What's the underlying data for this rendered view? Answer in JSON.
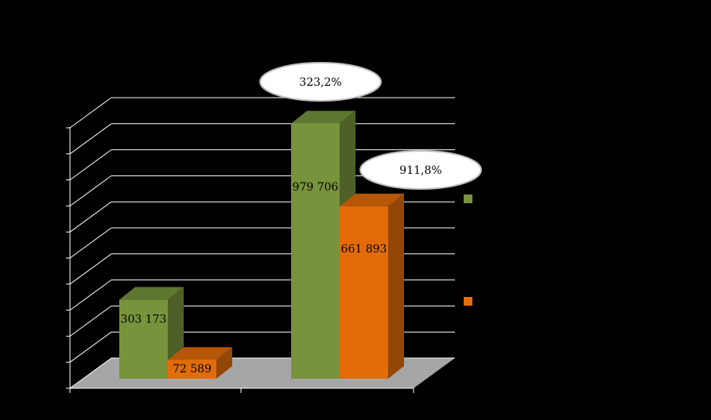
{
  "chart_data": {
    "type": "bar3d",
    "categories": [
      null,
      null
    ],
    "series": [
      {
        "color": "#77933c",
        "values": [
          303173,
          979706
        ],
        "value_labels": [
          "303 173",
          "979 706"
        ]
      },
      {
        "color": "#e36c09",
        "values": [
          72589,
          661893
        ],
        "value_labels": [
          "72 589",
          "661 893"
        ]
      }
    ],
    "annotations": [
      "323,2%",
      "911,8%"
    ],
    "ylim": [
      0,
      1000000
    ],
    "yticks": [
      0,
      100000,
      200000,
      300000,
      400000,
      500000,
      600000,
      700000,
      800000,
      900000,
      1000000
    ],
    "grid": true
  }
}
